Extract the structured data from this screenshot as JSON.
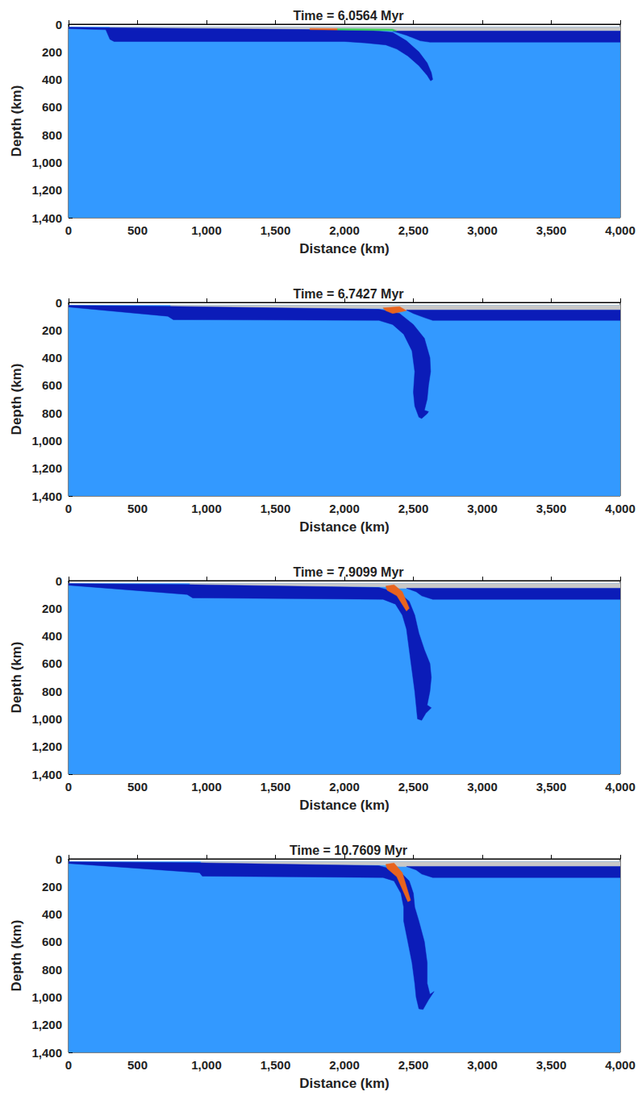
{
  "chart_data": [
    {
      "type": "polygon",
      "title": "Time = 6.0564 Myr",
      "xlabel": "Distance (km)",
      "ylabel": "Depth (km)",
      "xlim": [
        0,
        4000
      ],
      "ylim": [
        0,
        1400
      ],
      "xticks": [
        0,
        500,
        1000,
        1500,
        2000,
        2500,
        3000,
        3500,
        4000
      ],
      "yticks": [
        0,
        200,
        400,
        600,
        800,
        1000,
        1200,
        1400
      ],
      "grid": false,
      "series": [
        {
          "color": "#3399ff",
          "x": [
            0,
            4000,
            4000,
            0
          ],
          "y": [
            20,
            20,
            1400,
            1400
          ]
        },
        {
          "color": "#c8c8c8",
          "x": [
            300,
            4000,
            4000,
            2400,
            2300,
            300
          ],
          "y": [
            20,
            20,
            50,
            50,
            45,
            40
          ]
        },
        {
          "color": "#0b1cb8",
          "x": [
            2350,
            4000,
            4000,
            2620,
            2550,
            2450
          ],
          "y": [
            50,
            50,
            130,
            130,
            120,
            80
          ]
        },
        {
          "color": "#0b1cb8",
          "x": [
            0,
            250,
            1900,
            2200,
            2350,
            2450,
            2540,
            2600,
            2630,
            2640,
            2625,
            2600,
            2540,
            2460,
            2380,
            2300,
            2150,
            2000,
            1900,
            330,
            300,
            270,
            0
          ],
          "y": [
            22,
            25,
            40,
            45,
            60,
            120,
            200,
            280,
            350,
            400,
            410,
            370,
            300,
            230,
            180,
            150,
            135,
            125,
            125,
            125,
            110,
            40,
            32
          ]
        },
        {
          "color": "#e8641e",
          "x": [
            1750,
            1950,
            1950,
            1750
          ],
          "y": [
            30,
            32,
            42,
            40
          ]
        },
        {
          "color": "#3ccf5a",
          "x": [
            1950,
            2350,
            2380,
            1950
          ],
          "y": [
            32,
            35,
            48,
            42
          ]
        }
      ]
    },
    {
      "type": "polygon",
      "title": "Time = 6.7427 Myr",
      "xlabel": "Distance (km)",
      "ylabel": "Depth (km)",
      "xlim": [
        0,
        4000
      ],
      "ylim": [
        0,
        1400
      ],
      "xticks": [
        0,
        500,
        1000,
        1500,
        2000,
        2500,
        3000,
        3500,
        4000
      ],
      "yticks": [
        0,
        200,
        400,
        600,
        800,
        1000,
        1200,
        1400
      ],
      "grid": false,
      "series": [
        {
          "color": "#3399ff",
          "x": [
            0,
            4000,
            4000,
            0
          ],
          "y": [
            20,
            20,
            1400,
            1400
          ]
        },
        {
          "color": "#c8c8c8",
          "x": [
            740,
            4000,
            4000,
            2400,
            2300,
            740
          ],
          "y": [
            20,
            20,
            55,
            55,
            45,
            40
          ]
        },
        {
          "color": "#0b1cb8",
          "x": [
            2450,
            4000,
            4000,
            2640,
            2580,
            2500
          ],
          "y": [
            55,
            55,
            130,
            130,
            110,
            80
          ]
        },
        {
          "color": "#0b1cb8",
          "x": [
            0,
            700,
            2250,
            2400,
            2500,
            2580,
            2620,
            2625,
            2610,
            2600,
            2580,
            2610,
            2600,
            2560,
            2540,
            2510,
            2500,
            2510,
            2490,
            2430,
            2350,
            2250,
            760,
            720,
            0
          ],
          "y": [
            22,
            28,
            50,
            80,
            160,
            260,
            400,
            500,
            600,
            700,
            780,
            790,
            805,
            840,
            830,
            750,
            650,
            500,
            350,
            230,
            160,
            130,
            125,
            100,
            33
          ]
        },
        {
          "color": "#e8641e",
          "x": [
            2280,
            2400,
            2450,
            2350,
            2300
          ],
          "y": [
            40,
            30,
            60,
            80,
            60
          ]
        }
      ]
    },
    {
      "type": "polygon",
      "title": "Time = 7.9099 Myr",
      "xlabel": "Distance (km)",
      "ylabel": "Depth (km)",
      "xlim": [
        0,
        4000
      ],
      "ylim": [
        0,
        1400
      ],
      "xticks": [
        0,
        500,
        1000,
        1500,
        2000,
        2500,
        3000,
        3500,
        4000
      ],
      "yticks": [
        0,
        200,
        400,
        600,
        800,
        1000,
        1200,
        1400
      ],
      "grid": false,
      "series": [
        {
          "color": "#3399ff",
          "x": [
            0,
            4000,
            4000,
            0
          ],
          "y": [
            20,
            20,
            1400,
            1400
          ]
        },
        {
          "color": "#c8c8c8",
          "x": [
            880,
            4000,
            4000,
            2400,
            2300,
            880
          ],
          "y": [
            20,
            20,
            55,
            55,
            45,
            40
          ]
        },
        {
          "color": "#0b1cb8",
          "x": [
            2450,
            4000,
            4000,
            2640,
            2560,
            2520
          ],
          "y": [
            55,
            55,
            135,
            135,
            110,
            80
          ]
        },
        {
          "color": "#0b1cb8",
          "x": [
            0,
            840,
            2250,
            2400,
            2470,
            2510,
            2540,
            2580,
            2620,
            2630,
            2620,
            2600,
            2630,
            2590,
            2560,
            2530,
            2520,
            2510,
            2490,
            2470,
            2450,
            2420,
            2370,
            2280,
            900,
            860,
            0
          ],
          "y": [
            22,
            28,
            50,
            90,
            150,
            250,
            380,
            500,
            600,
            700,
            800,
            900,
            920,
            960,
            1010,
            1000,
            900,
            800,
            650,
            500,
            350,
            250,
            170,
            135,
            125,
            100,
            33
          ]
        },
        {
          "color": "#e8641e",
          "x": [
            2300,
            2360,
            2420,
            2470,
            2450,
            2380,
            2310
          ],
          "y": [
            40,
            30,
            80,
            200,
            220,
            110,
            70
          ]
        }
      ]
    },
    {
      "type": "polygon",
      "title": "Time = 10.7609 Myr",
      "xlabel": "Distance (km)",
      "ylabel": "Depth (km)",
      "xlim": [
        0,
        4000
      ],
      "ylim": [
        0,
        1400
      ],
      "xticks": [
        0,
        500,
        1000,
        1500,
        2000,
        2500,
        3000,
        3500,
        4000
      ],
      "yticks": [
        0,
        200,
        400,
        600,
        800,
        1000,
        1200,
        1400
      ],
      "grid": false,
      "series": [
        {
          "color": "#3399ff",
          "x": [
            0,
            4000,
            4000,
            0
          ],
          "y": [
            20,
            20,
            1400,
            1400
          ]
        },
        {
          "color": "#c8c8c8",
          "x": [
            960,
            4000,
            4000,
            2400,
            2300,
            960
          ],
          "y": [
            20,
            20,
            55,
            55,
            45,
            40
          ]
        },
        {
          "color": "#0b1cb8",
          "x": [
            2450,
            4000,
            4000,
            2640,
            2560,
            2520
          ],
          "y": [
            55,
            55,
            135,
            135,
            110,
            80
          ]
        },
        {
          "color": "#0b1cb8",
          "x": [
            0,
            930,
            2250,
            2400,
            2470,
            2500,
            2510,
            2540,
            2580,
            2600,
            2600,
            2620,
            2650,
            2610,
            2570,
            2540,
            2520,
            2510,
            2490,
            2460,
            2430,
            2430,
            2410,
            2360,
            2280,
            970,
            950,
            0
          ],
          "y": [
            22,
            28,
            50,
            90,
            160,
            250,
            350,
            450,
            600,
            750,
            900,
            980,
            960,
            1020,
            1090,
            1085,
            1000,
            900,
            750,
            600,
            450,
            350,
            250,
            160,
            135,
            125,
            100,
            33
          ]
        },
        {
          "color": "#e8641e",
          "x": [
            2300,
            2360,
            2420,
            2480,
            2460,
            2380,
            2310
          ],
          "y": [
            40,
            30,
            100,
            300,
            310,
            130,
            70
          ]
        }
      ]
    }
  ]
}
